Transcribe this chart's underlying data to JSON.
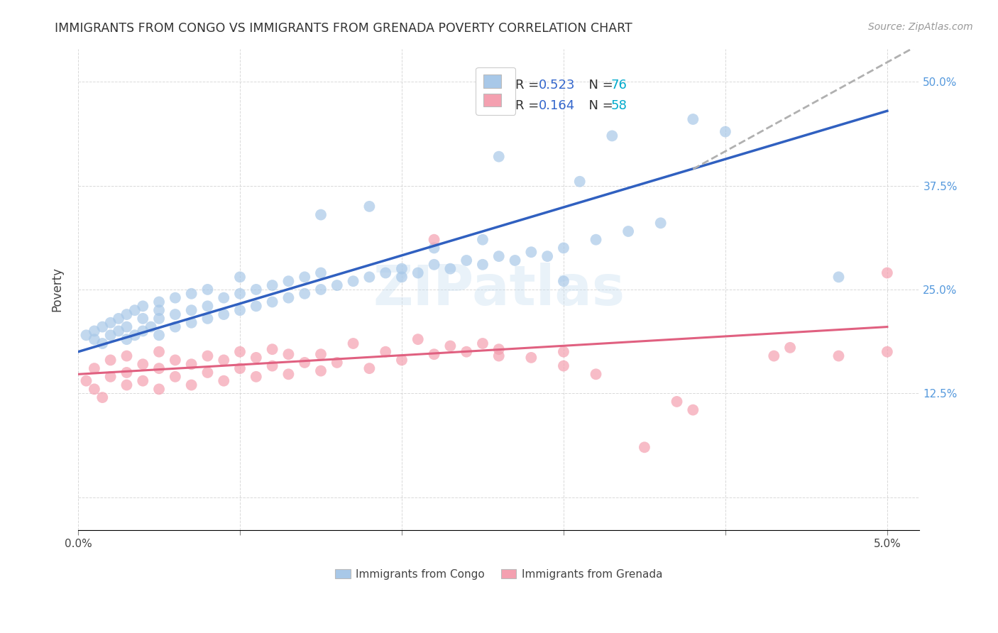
{
  "title": "IMMIGRANTS FROM CONGO VS IMMIGRANTS FROM GRENADA POVERTY CORRELATION CHART",
  "source": "Source: ZipAtlas.com",
  "ylabel": "Poverty",
  "congo_R": "0.523",
  "congo_N": "76",
  "grenada_R": "0.164",
  "grenada_N": "58",
  "congo_color": "#a8c8e8",
  "grenada_color": "#f4a0b0",
  "congo_line_color": "#3060c0",
  "grenada_line_color": "#e06080",
  "dashed_line_color": "#b0b0b0",
  "watermark": "ZIPatlas",
  "background_color": "#ffffff",
  "grid_color": "#d0d0d0",
  "legend_R_color": "#3366cc",
  "legend_N_color": "#00aacc",
  "xlim": [
    0.0,
    0.052
  ],
  "ylim": [
    -0.04,
    0.54
  ],
  "x_tick_positions": [
    0.0,
    0.01,
    0.02,
    0.03,
    0.04,
    0.05
  ],
  "x_tick_labels": [
    "0.0%",
    "",
    "",
    "",
    "",
    "5.0%"
  ],
  "y_tick_positions": [
    0.0,
    0.125,
    0.25,
    0.375,
    0.5
  ],
  "y_tick_labels": [
    "",
    "12.5%",
    "25.0%",
    "37.5%",
    "50.0%"
  ],
  "congo_scatter_x": [
    0.0005,
    0.001,
    0.001,
    0.0015,
    0.0015,
    0.002,
    0.002,
    0.0025,
    0.0025,
    0.003,
    0.003,
    0.003,
    0.0035,
    0.0035,
    0.004,
    0.004,
    0.004,
    0.0045,
    0.005,
    0.005,
    0.005,
    0.005,
    0.006,
    0.006,
    0.006,
    0.007,
    0.007,
    0.007,
    0.008,
    0.008,
    0.008,
    0.009,
    0.009,
    0.01,
    0.01,
    0.01,
    0.011,
    0.011,
    0.012,
    0.012,
    0.013,
    0.013,
    0.014,
    0.014,
    0.015,
    0.015,
    0.016,
    0.017,
    0.018,
    0.019,
    0.02,
    0.02,
    0.021,
    0.022,
    0.023,
    0.024,
    0.025,
    0.026,
    0.027,
    0.028,
    0.029,
    0.03,
    0.032,
    0.034,
    0.036,
    0.015,
    0.018,
    0.022,
    0.025,
    0.03,
    0.026,
    0.031,
    0.033,
    0.038,
    0.04,
    0.047
  ],
  "congo_scatter_y": [
    0.195,
    0.19,
    0.2,
    0.185,
    0.205,
    0.195,
    0.21,
    0.2,
    0.215,
    0.19,
    0.205,
    0.22,
    0.195,
    0.225,
    0.2,
    0.215,
    0.23,
    0.205,
    0.195,
    0.215,
    0.225,
    0.235,
    0.205,
    0.22,
    0.24,
    0.21,
    0.225,
    0.245,
    0.215,
    0.23,
    0.25,
    0.22,
    0.24,
    0.225,
    0.245,
    0.265,
    0.23,
    0.25,
    0.235,
    0.255,
    0.24,
    0.26,
    0.245,
    0.265,
    0.25,
    0.27,
    0.255,
    0.26,
    0.265,
    0.27,
    0.265,
    0.275,
    0.27,
    0.28,
    0.275,
    0.285,
    0.28,
    0.29,
    0.285,
    0.295,
    0.29,
    0.3,
    0.31,
    0.32,
    0.33,
    0.34,
    0.35,
    0.3,
    0.31,
    0.26,
    0.41,
    0.38,
    0.435,
    0.455,
    0.44,
    0.265
  ],
  "grenada_scatter_x": [
    0.0005,
    0.001,
    0.001,
    0.0015,
    0.002,
    0.002,
    0.003,
    0.003,
    0.003,
    0.004,
    0.004,
    0.005,
    0.005,
    0.005,
    0.006,
    0.006,
    0.007,
    0.007,
    0.008,
    0.008,
    0.009,
    0.009,
    0.01,
    0.01,
    0.011,
    0.011,
    0.012,
    0.012,
    0.013,
    0.013,
    0.014,
    0.015,
    0.015,
    0.016,
    0.017,
    0.018,
    0.019,
    0.02,
    0.021,
    0.022,
    0.023,
    0.024,
    0.025,
    0.026,
    0.028,
    0.03,
    0.032,
    0.035,
    0.022,
    0.026,
    0.03,
    0.038,
    0.044,
    0.047,
    0.05,
    0.05,
    0.037,
    0.043
  ],
  "grenada_scatter_y": [
    0.14,
    0.13,
    0.155,
    0.12,
    0.145,
    0.165,
    0.135,
    0.15,
    0.17,
    0.14,
    0.16,
    0.13,
    0.155,
    0.175,
    0.145,
    0.165,
    0.135,
    0.16,
    0.15,
    0.17,
    0.14,
    0.165,
    0.155,
    0.175,
    0.145,
    0.168,
    0.158,
    0.178,
    0.148,
    0.172,
    0.162,
    0.152,
    0.172,
    0.162,
    0.185,
    0.155,
    0.175,
    0.165,
    0.19,
    0.172,
    0.182,
    0.175,
    0.185,
    0.178,
    0.168,
    0.158,
    0.148,
    0.06,
    0.31,
    0.17,
    0.175,
    0.105,
    0.18,
    0.17,
    0.175,
    0.27,
    0.115,
    0.17
  ],
  "congo_line_x": [
    0.0,
    0.05
  ],
  "congo_line_y": [
    0.175,
    0.465
  ],
  "grenada_line_x": [
    0.0,
    0.05
  ],
  "grenada_line_y": [
    0.148,
    0.205
  ],
  "dashed_line_x": [
    0.038,
    0.052
  ],
  "dashed_line_y": [
    0.395,
    0.545
  ]
}
